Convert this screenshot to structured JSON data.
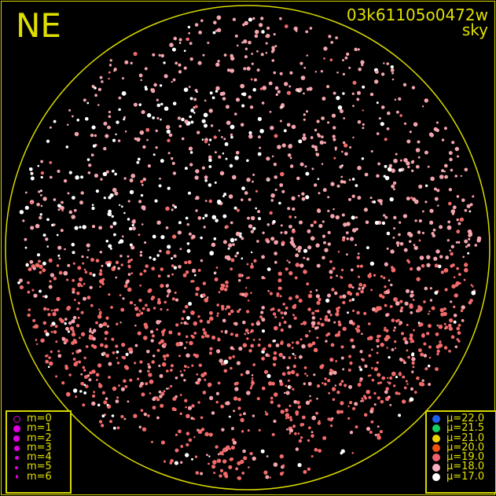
{
  "header": {
    "direction": "NE",
    "frame_id": "03k61105o0472w",
    "subtitle": "sky"
  },
  "chart_data": {
    "type": "scatter",
    "title": "03k61105o0472w",
    "subtitle": "sky",
    "orientation_label": "NE",
    "size_legend": [
      {
        "label": "m=0",
        "style": "ring"
      },
      {
        "label": "m=1"
      },
      {
        "label": "m=2"
      },
      {
        "label": "m=3"
      },
      {
        "label": "m=4"
      },
      {
        "label": "m=5"
      },
      {
        "label": "m=6"
      }
    ],
    "color_legend": [
      {
        "label": "μ=22.0",
        "color": "#1f5ff0"
      },
      {
        "label": "μ=21.5",
        "color": "#10d060"
      },
      {
        "label": "μ=21.0",
        "color": "#f0d000"
      },
      {
        "label": "μ=20.0",
        "color": "#f05010"
      },
      {
        "label": "μ=19.0",
        "color": "#f06070"
      },
      {
        "label": "μ=18.0",
        "color": "#f8b0c0"
      },
      {
        "label": "μ=17.0",
        "color": "#ffffff"
      }
    ]
  },
  "colors": {
    "frame": "#d8d800",
    "text": "#e0e000",
    "legend_marker": "#e000e0"
  }
}
